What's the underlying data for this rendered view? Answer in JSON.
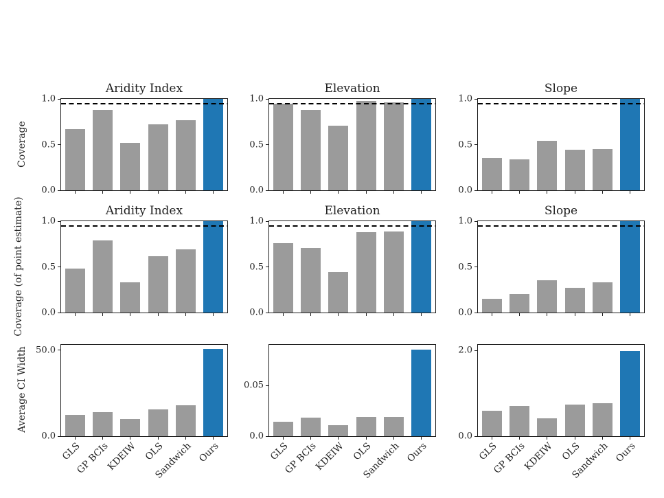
{
  "figure": {
    "background": "#ffffff",
    "bar_color_default": "#9b9b9b",
    "bar_color_highlight": "#1f77b4",
    "spine_color": "#1c1c1c",
    "dashed_line_color": "#000000",
    "text_color": "#1f1f1f"
  },
  "categories": [
    "GLS",
    "GP BCIs",
    "KDEIW",
    "OLS",
    "Sandwich",
    "Ours"
  ],
  "highlight_category": "Ours",
  "nominal_coverage_level": 0.95,
  "chart_data": [
    {
      "type": "bar",
      "row": 0,
      "col": 0,
      "title": "Aridity Index",
      "ylabel": "Coverage",
      "categories": [
        "GLS",
        "GP BCIs",
        "KDEIW",
        "OLS",
        "Sandwich",
        "Ours"
      ],
      "values": [
        0.67,
        0.88,
        0.52,
        0.72,
        0.77,
        1.0
      ],
      "ylim": [
        0,
        1.0
      ],
      "yticks": [
        0.0,
        0.5,
        1.0
      ],
      "ytick_labels": [
        "0.0",
        "0.5",
        "1.0"
      ],
      "dashed_line": 0.95,
      "show_xticklabels": false
    },
    {
      "type": "bar",
      "row": 0,
      "col": 1,
      "title": "Elevation",
      "ylabel": "",
      "categories": [
        "GLS",
        "GP BCIs",
        "KDEIW",
        "OLS",
        "Sandwich",
        "Ours"
      ],
      "values": [
        0.95,
        0.88,
        0.71,
        0.98,
        0.96,
        1.0
      ],
      "ylim": [
        0,
        1.0
      ],
      "yticks": [
        0.0,
        0.5,
        1.0
      ],
      "ytick_labels": [
        "0.0",
        "0.5",
        "1.0"
      ],
      "dashed_line": 0.95,
      "show_xticklabels": false
    },
    {
      "type": "bar",
      "row": 0,
      "col": 2,
      "title": "Slope",
      "ylabel": "",
      "categories": [
        "GLS",
        "GP BCIs",
        "KDEIW",
        "OLS",
        "Sandwich",
        "Ours"
      ],
      "values": [
        0.35,
        0.34,
        0.54,
        0.44,
        0.45,
        1.0
      ],
      "ylim": [
        0,
        1.0
      ],
      "yticks": [
        0.0,
        0.5,
        1.0
      ],
      "ytick_labels": [
        "0.0",
        "0.5",
        "1.0"
      ],
      "dashed_line": 0.95,
      "show_xticklabels": false
    },
    {
      "type": "bar",
      "row": 1,
      "col": 0,
      "title": "Aridity Index",
      "ylabel": "Coverage (of point estimate)",
      "categories": [
        "GLS",
        "GP BCIs",
        "KDEIW",
        "OLS",
        "Sandwich",
        "Ours"
      ],
      "values": [
        0.48,
        0.79,
        0.33,
        0.62,
        0.69,
        1.0
      ],
      "ylim": [
        0,
        1.0
      ],
      "yticks": [
        0.0,
        0.5,
        1.0
      ],
      "ytick_labels": [
        "0.0",
        "0.5",
        "1.0"
      ],
      "dashed_line": 0.95,
      "show_xticklabels": false
    },
    {
      "type": "bar",
      "row": 1,
      "col": 1,
      "title": "Elevation",
      "ylabel": "",
      "categories": [
        "GLS",
        "GP BCIs",
        "KDEIW",
        "OLS",
        "Sandwich",
        "Ours"
      ],
      "values": [
        0.76,
        0.71,
        0.44,
        0.88,
        0.89,
        1.0
      ],
      "ylim": [
        0,
        1.0
      ],
      "yticks": [
        0.0,
        0.5,
        1.0
      ],
      "ytick_labels": [
        "0.0",
        "0.5",
        "1.0"
      ],
      "dashed_line": 0.95,
      "show_xticklabels": false
    },
    {
      "type": "bar",
      "row": 1,
      "col": 2,
      "title": "Slope",
      "ylabel": "",
      "categories": [
        "GLS",
        "GP BCIs",
        "KDEIW",
        "OLS",
        "Sandwich",
        "Ours"
      ],
      "values": [
        0.15,
        0.2,
        0.35,
        0.27,
        0.33,
        1.0
      ],
      "ylim": [
        0,
        1.0
      ],
      "yticks": [
        0.0,
        0.5,
        1.0
      ],
      "ytick_labels": [
        "0.0",
        "0.5",
        "1.0"
      ],
      "dashed_line": 0.95,
      "show_xticklabels": false
    },
    {
      "type": "bar",
      "row": 2,
      "col": 0,
      "title": "",
      "ylabel": "Average CI Width",
      "categories": [
        "GLS",
        "GP BCIs",
        "KDEIW",
        "OLS",
        "Sandwich",
        "Ours"
      ],
      "values": [
        12.5,
        14.0,
        10.0,
        15.5,
        18.0,
        50.7
      ],
      "ylim": [
        0,
        53
      ],
      "yticks": [
        0.0,
        50.0
      ],
      "ytick_labels": [
        "0.0",
        "50.0"
      ],
      "dashed_line": null,
      "show_xticklabels": true
    },
    {
      "type": "bar",
      "row": 2,
      "col": 1,
      "title": "",
      "ylabel": "",
      "categories": [
        "GLS",
        "GP BCIs",
        "KDEIW",
        "OLS",
        "Sandwich",
        "Ours"
      ],
      "values": [
        0.014,
        0.018,
        0.011,
        0.019,
        0.019,
        0.085
      ],
      "ylim": [
        0,
        0.09
      ],
      "yticks": [
        0.0,
        0.05
      ],
      "ytick_labels": [
        "0.0",
        "0.05"
      ],
      "dashed_line": null,
      "show_xticklabels": true
    },
    {
      "type": "bar",
      "row": 2,
      "col": 2,
      "title": "",
      "ylabel": "",
      "categories": [
        "GLS",
        "GP BCIs",
        "KDEIW",
        "OLS",
        "Sandwich",
        "Ours"
      ],
      "values": [
        0.59,
        0.7,
        0.41,
        0.73,
        0.77,
        1.98
      ],
      "ylim": [
        0,
        2.13
      ],
      "yticks": [
        0.0,
        2.0
      ],
      "ytick_labels": [
        "0.0",
        "2.0"
      ],
      "dashed_line": null,
      "show_xticklabels": true
    }
  ]
}
